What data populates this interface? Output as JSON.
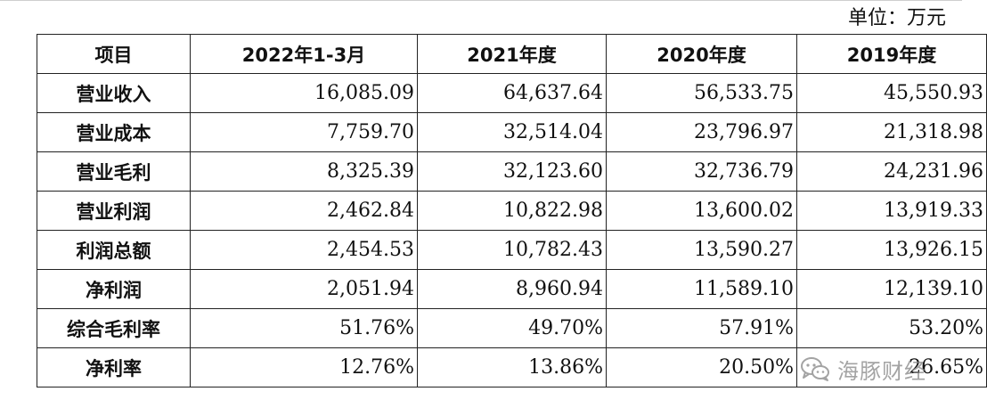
{
  "unit_label": "单位：万元",
  "table": {
    "headers": [
      "项目",
      "2022年1-3月",
      "2021年度",
      "2020年度",
      "2019年度"
    ],
    "rows": [
      {
        "label": "营业收入",
        "values": [
          "16,085.09",
          "64,637.64",
          "56,533.75",
          "45,550.93"
        ]
      },
      {
        "label": "营业成本",
        "values": [
          "7,759.70",
          "32,514.04",
          "23,796.97",
          "21,318.98"
        ]
      },
      {
        "label": "营业毛利",
        "values": [
          "8,325.39",
          "32,123.60",
          "32,736.79",
          "24,231.96"
        ]
      },
      {
        "label": "营业利润",
        "values": [
          "2,462.84",
          "10,822.98",
          "13,600.02",
          "13,919.33"
        ]
      },
      {
        "label": "利润总额",
        "values": [
          "2,454.53",
          "10,782.43",
          "13,590.27",
          "13,926.15"
        ]
      },
      {
        "label": "净利润",
        "values": [
          "2,051.94",
          "8,960.94",
          "11,589.10",
          "12,139.10"
        ]
      },
      {
        "label": "综合毛利率",
        "values": [
          "51.76%",
          "49.70%",
          "57.91%",
          "53.20%"
        ]
      },
      {
        "label": "净利率",
        "values": [
          "12.76%",
          "13.86%",
          "20.50%",
          "26.65%"
        ]
      }
    ]
  },
  "watermark": {
    "text": "海豚财经",
    "icon": "wechat-icon"
  }
}
